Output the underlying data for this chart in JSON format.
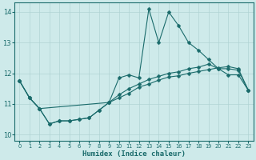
{
  "xlabel": "Humidex (Indice chaleur)",
  "bg_color": "#ceeaea",
  "line_color": "#1a6b6b",
  "grid_color": "#b0d4d4",
  "xlim": [
    -0.5,
    23.5
  ],
  "ylim": [
    9.8,
    14.3
  ],
  "yticks": [
    10,
    11,
    12,
    13,
    14
  ],
  "xticks": [
    0,
    1,
    2,
    3,
    4,
    5,
    6,
    7,
    8,
    9,
    10,
    11,
    12,
    13,
    14,
    15,
    16,
    17,
    18,
    19,
    20,
    21,
    22,
    23
  ],
  "line1_x": [
    0,
    1,
    2,
    3,
    4,
    5,
    6,
    7,
    8,
    9,
    10,
    11,
    12,
    13,
    14,
    15,
    16,
    17,
    18,
    19,
    20,
    21,
    22,
    23
  ],
  "line1_y": [
    11.75,
    11.2,
    10.85,
    10.35,
    10.45,
    10.45,
    10.5,
    10.55,
    10.8,
    11.05,
    11.85,
    11.95,
    11.85,
    14.1,
    13.0,
    14.0,
    13.55,
    13.0,
    12.75,
    12.45,
    12.15,
    11.95,
    11.95,
    11.45
  ],
  "line2_x": [
    0,
    1,
    2,
    3,
    4,
    5,
    6,
    7,
    8,
    9,
    10,
    11,
    12,
    13,
    14,
    15,
    16,
    17,
    18,
    19,
    20,
    21,
    22,
    23
  ],
  "line2_y": [
    11.75,
    11.2,
    10.85,
    10.35,
    10.45,
    10.45,
    10.5,
    10.55,
    10.8,
    11.05,
    11.3,
    11.5,
    11.65,
    11.8,
    11.9,
    12.0,
    12.05,
    12.15,
    12.2,
    12.3,
    12.15,
    12.15,
    12.1,
    11.45
  ],
  "line3_x": [
    0,
    1,
    2,
    9,
    10,
    11,
    12,
    13,
    14,
    15,
    16,
    17,
    18,
    19,
    20,
    21,
    22,
    23
  ],
  "line3_y": [
    11.75,
    11.2,
    10.85,
    11.05,
    11.2,
    11.35,
    11.55,
    11.65,
    11.78,
    11.88,
    11.92,
    12.0,
    12.06,
    12.12,
    12.18,
    12.22,
    12.15,
    11.45
  ]
}
